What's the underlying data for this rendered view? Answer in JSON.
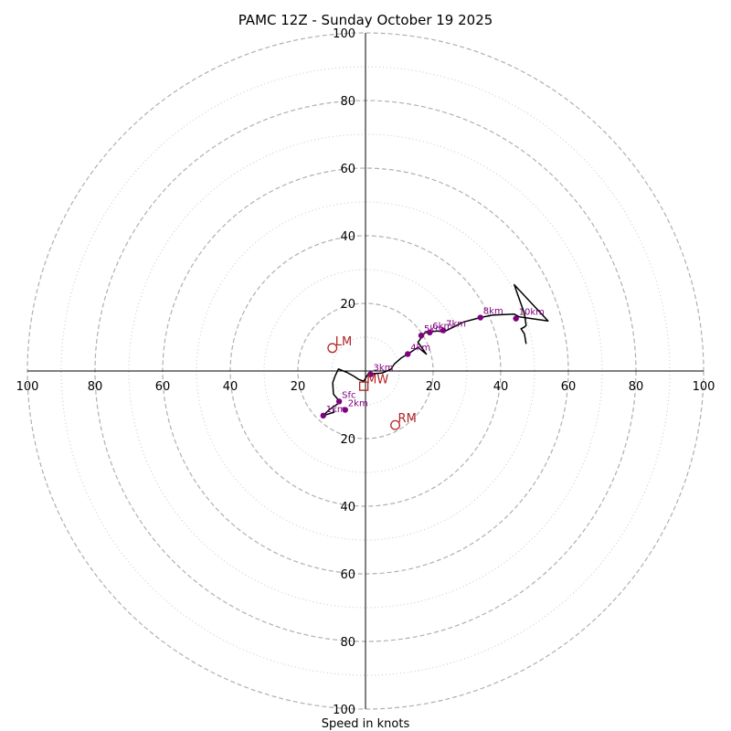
{
  "chart_data": {
    "type": "hodograph",
    "title": "PAMC 12Z - Sunday October 19 2025",
    "xlabel": "Speed in knots",
    "units": "knots",
    "range": [
      -100,
      100
    ],
    "major_rings": [
      20,
      40,
      60,
      80,
      100
    ],
    "minor_rings": [
      10,
      30,
      50,
      70,
      90
    ],
    "tick_labels": {
      "left": [
        "100",
        "80",
        "60",
        "40",
        "20"
      ],
      "right": [
        "20",
        "40",
        "60",
        "80",
        "100"
      ],
      "top": [
        "100",
        "80",
        "60",
        "40",
        "20"
      ],
      "bottom": [
        "20",
        "40",
        "60",
        "80",
        "100"
      ]
    },
    "trace": [
      [
        -9.5,
        -11.8
      ],
      [
        -9.3,
        -12.2
      ],
      [
        -12.5,
        -13.2
      ],
      [
        -10.8,
        -11.5
      ],
      [
        -7.7,
        -9.4
      ],
      [
        -7.8,
        -8.8
      ],
      [
        -9.2,
        -7.2
      ],
      [
        -9.5,
        -6.8
      ],
      [
        -9.7,
        -3.5
      ],
      [
        -9.0,
        -1.5
      ],
      [
        -8.0,
        0.6
      ],
      [
        -5.5,
        -0.4
      ],
      [
        -3.5,
        -1.5
      ],
      [
        -2.0,
        -2.5
      ],
      [
        -0.5,
        -3.0
      ],
      [
        1.0,
        -0.5
      ],
      [
        2.0,
        -0.8
      ],
      [
        5.0,
        -0.6
      ],
      [
        7.5,
        0.5
      ],
      [
        8.5,
        2.0
      ],
      [
        10.5,
        3.8
      ],
      [
        12.5,
        5.0
      ],
      [
        15.5,
        7.0
      ],
      [
        18.0,
        5.0
      ],
      [
        15.5,
        8.5
      ],
      [
        16.5,
        9.8
      ],
      [
        17.5,
        11.3
      ],
      [
        19.0,
        11.6
      ],
      [
        21.5,
        11.8
      ],
      [
        23.0,
        11.5
      ],
      [
        26.0,
        13.0
      ],
      [
        29.0,
        14.5
      ],
      [
        34.0,
        15.8
      ],
      [
        37.5,
        16.5
      ],
      [
        41.0,
        16.7
      ],
      [
        44.0,
        16.8
      ],
      [
        45.5,
        16.0
      ],
      [
        54.0,
        14.8
      ],
      [
        44.0,
        25.5
      ],
      [
        47.0,
        17.0
      ],
      [
        47.5,
        13.5
      ],
      [
        47.0,
        13.0
      ],
      [
        46.0,
        12.5
      ],
      [
        47.0,
        11.0
      ],
      [
        47.5,
        8.0
      ]
    ],
    "height_points": [
      {
        "label": "Sfc",
        "u": -7.8,
        "v": -9.0
      },
      {
        "label": "1km",
        "u": -12.5,
        "v": -13.2
      },
      {
        "label": "2km",
        "u": -6.0,
        "v": -11.5
      },
      {
        "label": "3km",
        "u": 1.5,
        "v": -1.0
      },
      {
        "label": "4km",
        "u": 12.5,
        "v": 5.0
      },
      {
        "label": "5km",
        "u": 16.5,
        "v": 10.5
      },
      {
        "label": "6km",
        "u": 19.0,
        "v": 11.4
      },
      {
        "label": "7km",
        "u": 23.0,
        "v": 12.0
      },
      {
        "label": "8km",
        "u": 34.0,
        "v": 15.8
      },
      {
        "label": "10km",
        "u": 44.5,
        "v": 15.5
      }
    ],
    "storm_motion": [
      {
        "label": "LM",
        "marker": "circle",
        "u": -9.8,
        "v": 6.8
      },
      {
        "label": "RM",
        "marker": "circle",
        "u": 8.8,
        "v": -16.0
      },
      {
        "label": "MW",
        "marker": "square",
        "u": -0.5,
        "v": -4.5
      }
    ],
    "colors": {
      "trace": "#000000",
      "height_points": "#800080",
      "storm_motion": "#b22222",
      "major_ring": "#b0b0b0",
      "minor_ring": "#c8c8c8",
      "axes": "#000000"
    },
    "grid": true
  }
}
